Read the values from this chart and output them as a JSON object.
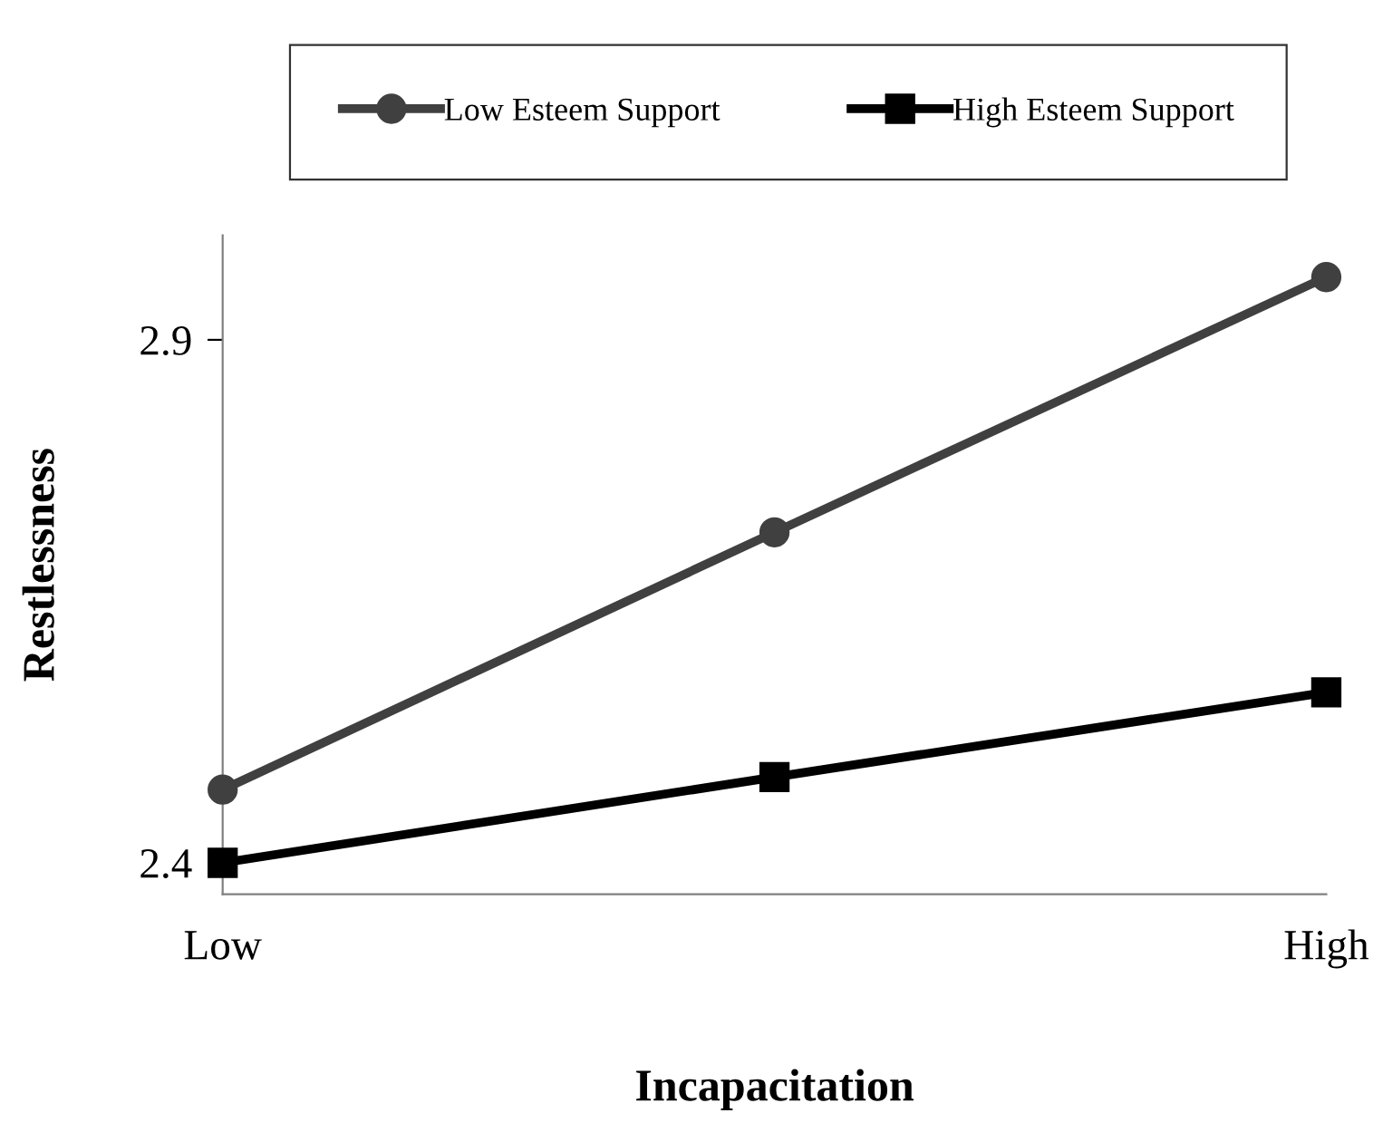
{
  "chart_data": {
    "type": "line",
    "xlabel": "Incapacitation",
    "ylabel": "Restlessness",
    "categories": [
      "Low",
      null,
      "High"
    ],
    "series": [
      {
        "name": "Low Esteem Support",
        "color": "#404040",
        "marker": "circle",
        "values": [
          2.47,
          2.716,
          2.96
        ]
      },
      {
        "name": "High Esteem Support",
        "color": "#000000",
        "marker": "square",
        "values": [
          2.4,
          2.482,
          2.563
        ]
      }
    ],
    "ylim": [
      2.37,
      3.0
    ],
    "yticks": [
      2.4,
      2.9
    ],
    "grid": false,
    "legend": "top",
    "line_style": "solid"
  }
}
